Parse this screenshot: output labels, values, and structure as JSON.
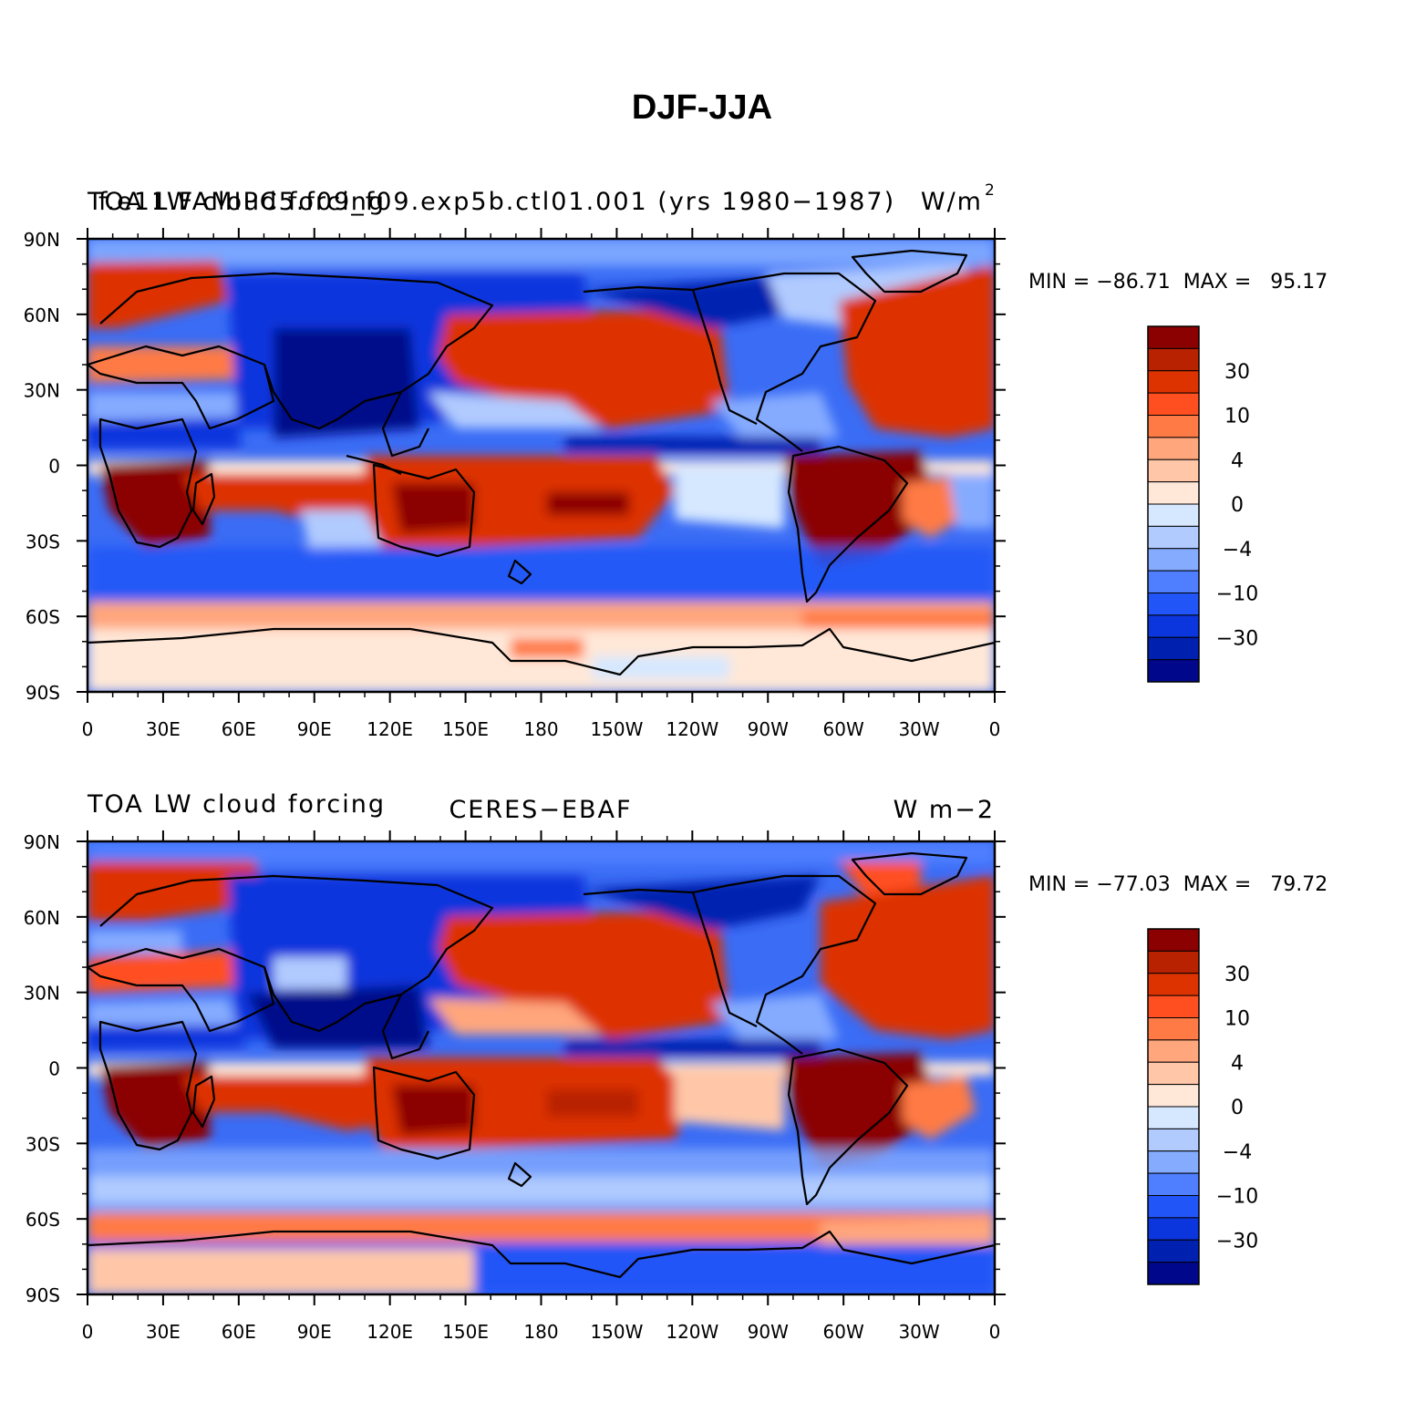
{
  "chart_data": {
    "type": "heatmap",
    "title": "DJF-JJA",
    "x_ticks": [
      "0",
      "30E",
      "60E",
      "90E",
      "120E",
      "150E",
      "180",
      "150W",
      "120W",
      "90W",
      "60W",
      "30W",
      "0"
    ],
    "y_ticks": [
      "90N",
      "60N",
      "30N",
      "0",
      "30S",
      "60S",
      "90S"
    ],
    "xlim": [
      0,
      360
    ],
    "ylim": [
      -90,
      90
    ],
    "colorbar": {
      "tick_labels": [
        "30",
        "10",
        "4",
        "0",
        "−4",
        "−10",
        "−30"
      ],
      "colors_top_to_bottom": [
        "#8b0000",
        "#b82200",
        "#dd3300",
        "#ff4f20",
        "#ff7a45",
        "#ffa67d",
        "#ffc7a8",
        "#ffe8d8",
        "#d6e8ff",
        "#b1cbff",
        "#85abff",
        "#4f7fff",
        "#2255f7",
        "#0b35dd",
        "#0020b0",
        "#00078a"
      ]
    },
    "panels": [
      {
        "id": "model",
        "left_title_a": "TOA LW cloud forcing",
        "left_title_b": "f.e11.FAMIPC5.f09_f09.exp5b.ctl01.001 (yrs 1980−1987)",
        "units_a": "W/m",
        "units_sup": "2",
        "min_max": "MIN = −86.71  MAX =   95.17",
        "min": -86.71,
        "max": 95.17
      },
      {
        "id": "obs",
        "left_title": "TOA LW cloud forcing",
        "center_title": "CERES−EBAF",
        "units": "W m−2",
        "min_max": "MIN = −77.03  MAX =   79.72",
        "min": -77.03,
        "max": 79.72
      }
    ]
  }
}
